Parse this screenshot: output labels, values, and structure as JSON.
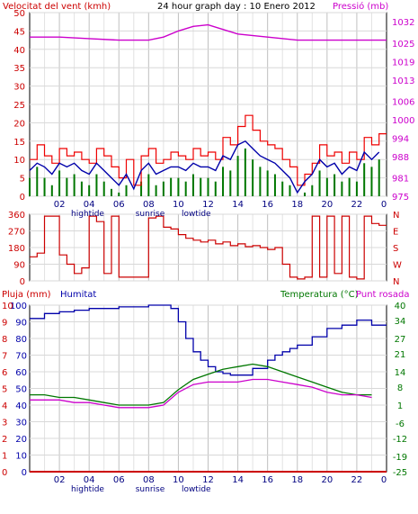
{
  "colors": {
    "wind": "#cc0000",
    "wind_gust": "#ee0000",
    "wind_avg": "#0000aa",
    "wind_low": "#007700",
    "pressure": "#cc00cc",
    "direction": "#cc0000",
    "rain": "#cc0000",
    "humidity": "#0000aa",
    "temperature": "#007700",
    "dewpoint": "#cc00cc",
    "grid": "#c0c0c0",
    "frame": "#000000"
  },
  "header": {
    "left_label": "Velocitat del vent (kmh)",
    "center_label": "24 hour graph day : 10 Enero 2012",
    "right_label": "Pressió (mb)"
  },
  "middle_header": {
    "left_label": "Humitat",
    "rain_label": "Pluja (mm)",
    "temp_label": "Temperatura (°C)",
    "dew_label": "Punt rosada"
  },
  "x_axis": {
    "tick_labels": [
      "02",
      "04",
      "06",
      "08",
      "10",
      "12",
      "14",
      "16",
      "18",
      "20",
      "22",
      "0"
    ],
    "sub_labels": {
      "hightide": "hightide",
      "sunrise": "sunrise",
      "lowtide": "lowtide"
    }
  },
  "chart_data": [
    {
      "type": "line",
      "name": "wind-pressure",
      "x_range": [
        0,
        24
      ],
      "ylim_left": [
        0,
        50
      ],
      "ylim_right": [
        975,
        1035
      ],
      "yticks_left": [
        0,
        5,
        10,
        15,
        20,
        25,
        30,
        35,
        40,
        45,
        50
      ],
      "yticks_right": [
        975,
        981,
        988,
        994,
        1000,
        1006,
        1013,
        1019,
        1025,
        1032
      ],
      "series": [
        {
          "key": "gust",
          "axis": "left",
          "x": [
            0,
            0.5,
            1,
            1.5,
            2,
            2.5,
            3,
            3.5,
            4,
            4.5,
            5,
            5.5,
            6,
            6.5,
            7,
            7.5,
            8,
            8.5,
            9,
            9.5,
            10,
            10.5,
            11,
            11.5,
            12,
            12.5,
            13,
            13.5,
            14,
            14.5,
            15,
            15.5,
            16,
            16.5,
            17,
            17.5,
            18,
            18.5,
            19,
            19.5,
            20,
            20.5,
            21,
            21.5,
            22,
            22.5,
            23,
            23.5
          ],
          "values": [
            10,
            14,
            11,
            9,
            13,
            11,
            12,
            10,
            9,
            13,
            11,
            8,
            5,
            10,
            3,
            11,
            13,
            9,
            10,
            12,
            11,
            10,
            13,
            11,
            12,
            10,
            16,
            14,
            19,
            22,
            18,
            15,
            14,
            13,
            10,
            8,
            3,
            6,
            9,
            14,
            11,
            12,
            9,
            12,
            10,
            16,
            14,
            17
          ]
        },
        {
          "key": "average",
          "axis": "left",
          "x": [
            0,
            0.5,
            1,
            1.5,
            2,
            2.5,
            3,
            3.5,
            4,
            4.5,
            5,
            5.5,
            6,
            6.5,
            7,
            7.5,
            8,
            8.5,
            9,
            9.5,
            10,
            10.5,
            11,
            11.5,
            12,
            12.5,
            13,
            13.5,
            14,
            14.5,
            15,
            15.5,
            16,
            16.5,
            17,
            17.5,
            18,
            18.5,
            19,
            19.5,
            20,
            20.5,
            21,
            21.5,
            22,
            22.5,
            23,
            23.5
          ],
          "values": [
            7,
            9,
            8,
            6,
            9,
            8,
            9,
            7,
            6,
            9,
            7,
            5,
            3,
            6,
            2,
            7,
            9,
            6,
            7,
            8,
            8,
            7,
            9,
            8,
            8,
            7,
            11,
            10,
            14,
            15,
            13,
            11,
            10,
            9,
            7,
            5,
            1,
            4,
            6,
            10,
            8,
            9,
            6,
            8,
            7,
            12,
            10,
            12
          ]
        },
        {
          "key": "lull",
          "axis": "left",
          "x": [
            0,
            0.5,
            1,
            1.5,
            2,
            2.5,
            3,
            3.5,
            4,
            4.5,
            5,
            5.5,
            6,
            6.5,
            7,
            7.5,
            8,
            8.5,
            9,
            9.5,
            10,
            10.5,
            11,
            11.5,
            12,
            12.5,
            13,
            13.5,
            14,
            14.5,
            15,
            15.5,
            16,
            16.5,
            17,
            17.5,
            18,
            18.5,
            19,
            19.5,
            20,
            20.5,
            21,
            21.5,
            22,
            22.5,
            23,
            23.5
          ],
          "values": [
            5,
            8,
            5,
            3,
            7,
            5,
            6,
            4,
            3,
            6,
            4,
            2,
            1,
            3,
            0,
            4,
            6,
            3,
            4,
            5,
            5,
            4,
            6,
            5,
            5,
            4,
            8,
            7,
            11,
            13,
            10,
            8,
            7,
            6,
            4,
            3,
            0,
            1,
            3,
            7,
            5,
            6,
            4,
            5,
            4,
            9,
            8,
            10
          ]
        },
        {
          "key": "pressure",
          "axis": "right",
          "x": [
            0,
            2,
            4,
            6,
            8,
            9,
            10,
            11,
            12,
            13,
            14,
            16,
            18,
            20,
            22,
            24
          ],
          "values": [
            1027,
            1027,
            1026.5,
            1026,
            1026,
            1027,
            1029,
            1030.5,
            1031,
            1029.5,
            1028,
            1027,
            1026,
            1026,
            1026,
            1026
          ]
        }
      ]
    },
    {
      "type": "line",
      "name": "wind-direction",
      "x_range": [
        0,
        24
      ],
      "ylim": [
        0,
        360
      ],
      "yticks": [
        0,
        90,
        180,
        270,
        360
      ],
      "compass_labels": [
        "N",
        "W",
        "S",
        "E",
        "N"
      ],
      "series": [
        {
          "key": "direction",
          "x": [
            0,
            0.5,
            1.0,
            1.5,
            2.0,
            2.5,
            3.0,
            3.5,
            4.0,
            4.5,
            5.0,
            5.5,
            6.0,
            6.5,
            7.0,
            7.5,
            8.0,
            8.5,
            9.0,
            9.5,
            10.0,
            10.5,
            11.0,
            11.5,
            12.0,
            12.5,
            13.0,
            13.5,
            14.0,
            14.5,
            15.0,
            15.5,
            16.0,
            16.5,
            17.0,
            17.5,
            18.0,
            18.5,
            19.0,
            19.5,
            20.0,
            20.5,
            21.0,
            21.5,
            22.0,
            22.5,
            23.0,
            23.5
          ],
          "values": [
            130,
            150,
            350,
            350,
            140,
            90,
            40,
            70,
            350,
            320,
            40,
            350,
            20,
            20,
            20,
            20,
            340,
            350,
            290,
            280,
            250,
            230,
            220,
            210,
            220,
            200,
            210,
            190,
            200,
            185,
            190,
            180,
            170,
            180,
            90,
            20,
            10,
            20,
            350,
            20,
            350,
            40,
            350,
            20,
            10,
            350,
            310,
            300
          ]
        }
      ]
    },
    {
      "type": "line",
      "name": "humidity-temperature",
      "x_range": [
        0,
        24
      ],
      "ylim_left": [
        0,
        100
      ],
      "ylim_right": [
        -25,
        40
      ],
      "yticks_left": [
        0,
        10,
        20,
        30,
        40,
        50,
        60,
        70,
        80,
        90,
        100
      ],
      "yticks_right": [
        -25,
        -19,
        -12,
        -6,
        1,
        8,
        14,
        21,
        27,
        34,
        40
      ],
      "rain_ticks": [
        "0",
        "1",
        "2",
        "3",
        "4",
        "5",
        "6",
        "7",
        "8",
        "9",
        "10"
      ],
      "series": [
        {
          "key": "humidity",
          "axis": "left",
          "x": [
            0,
            1,
            2,
            3,
            4,
            5,
            6,
            7,
            8,
            9,
            9.5,
            10,
            10.5,
            11,
            11.5,
            12,
            12.5,
            13,
            13.5,
            14,
            15,
            16,
            16.5,
            17,
            17.5,
            18,
            19,
            20,
            21,
            22,
            23
          ],
          "values": [
            92,
            95,
            96,
            97,
            98,
            98,
            99,
            99,
            100,
            100,
            98,
            90,
            80,
            72,
            67,
            63,
            60,
            59,
            58,
            58,
            62,
            67,
            70,
            72,
            74,
            76,
            81,
            86,
            88,
            91,
            88
          ]
        },
        {
          "key": "temperature",
          "axis": "right",
          "x": [
            0,
            1,
            2,
            3,
            4,
            5,
            6,
            7,
            8,
            9,
            10,
            11,
            12,
            13,
            14,
            15,
            16,
            17,
            18,
            19,
            20,
            21,
            22,
            23
          ],
          "values": [
            5,
            5,
            4,
            4,
            3,
            2,
            1,
            1,
            1,
            2,
            7,
            11,
            13,
            15,
            16,
            17,
            16,
            14,
            12,
            10,
            8,
            6,
            5,
            5
          ]
        },
        {
          "key": "dewpoint",
          "axis": "right",
          "x": [
            0,
            1,
            2,
            3,
            4,
            5,
            6,
            7,
            8,
            9,
            10,
            11,
            12,
            13,
            14,
            15,
            16,
            17,
            18,
            19,
            20,
            21,
            22,
            23
          ],
          "values": [
            3,
            3,
            3,
            2,
            2,
            1,
            0,
            0,
            0,
            1,
            6,
            9,
            10,
            10,
            10,
            11,
            11,
            10,
            9,
            8,
            6,
            5,
            5,
            4
          ]
        },
        {
          "key": "rain",
          "axis": "rain",
          "x": [
            0,
            24
          ],
          "values": [
            0,
            0
          ]
        }
      ]
    }
  ]
}
